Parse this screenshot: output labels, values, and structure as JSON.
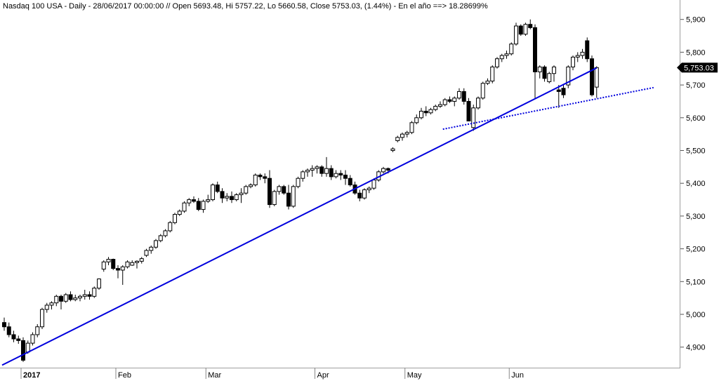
{
  "chart_data": {
    "type": "candlestick",
    "title": "Nasdaq 100 USA - Daily - 28/06/2017 00:00:00 // Open 5693.48, Hi 5757.22, Lo 5660.58, Close 5753.03, (1.44%) - En el año ==> 18.28699%",
    "ylim": [
      4840,
      5920
    ],
    "y_ticks": [
      4900,
      5000,
      5100,
      5200,
      5300,
      5400,
      5500,
      5600,
      5700,
      5800,
      5900
    ],
    "y_tick_labels": [
      "4,900",
      "5,000",
      "5,100",
      "5,200",
      "5,300",
      "5,400",
      "5,500",
      "5,600",
      "5,700",
      "5,800",
      "5,900"
    ],
    "x_labels": [
      {
        "label": "2017",
        "bold": true,
        "index": 4
      },
      {
        "label": "Feb",
        "bold": false,
        "index": 24
      },
      {
        "label": "Mar",
        "bold": false,
        "index": 43
      },
      {
        "label": "Apr",
        "bold": false,
        "index": 66
      },
      {
        "label": "May",
        "bold": false,
        "index": 85
      },
      {
        "label": "Jun",
        "bold": false,
        "index": 107
      }
    ],
    "last_value": 5753.03,
    "last_value_label": "5,753.03",
    "candles": [
      [
        4975,
        4990,
        4950,
        4962
      ],
      [
        4962,
        4975,
        4930,
        4938
      ],
      [
        4938,
        4950,
        4915,
        4925
      ],
      [
        4925,
        4935,
        4910,
        4920
      ],
      [
        4920,
        4930,
        4855,
        4860
      ],
      [
        4885,
        4920,
        4880,
        4912
      ],
      [
        4912,
        4945,
        4905,
        4938
      ],
      [
        4938,
        4970,
        4930,
        4962
      ],
      [
        4962,
        5020,
        4955,
        5015
      ],
      [
        5015,
        5035,
        5005,
        5028
      ],
      [
        5028,
        5040,
        5015,
        5035
      ],
      [
        5035,
        5060,
        5025,
        5055
      ],
      [
        5055,
        5060,
        5015,
        5040
      ],
      [
        5040,
        5065,
        5035,
        5060
      ],
      [
        5060,
        5070,
        5040,
        5045
      ],
      [
        5045,
        5060,
        5040,
        5050
      ],
      [
        5050,
        5060,
        5040,
        5055
      ],
      [
        5055,
        5075,
        5045,
        5060
      ],
      [
        5060,
        5070,
        5045,
        5055
      ],
      [
        5055,
        5085,
        5050,
        5080
      ],
      [
        5080,
        5110,
        5075,
        5108
      ],
      [
        5138,
        5165,
        5130,
        5160
      ],
      [
        5160,
        5175,
        5150,
        5168
      ],
      [
        5168,
        5170,
        5135,
        5140
      ],
      [
        5140,
        5150,
        5110,
        5135
      ],
      [
        5135,
        5150,
        5090,
        5145
      ],
      [
        5145,
        5165,
        5140,
        5160
      ],
      [
        5150,
        5165,
        5148,
        5158
      ],
      [
        5158,
        5165,
        5140,
        5162
      ],
      [
        5162,
        5175,
        5155,
        5170
      ],
      [
        5180,
        5200,
        5175,
        5195
      ],
      [
        5195,
        5210,
        5185,
        5205
      ],
      [
        5205,
        5230,
        5200,
        5225
      ],
      [
        5225,
        5245,
        5220,
        5240
      ],
      [
        5240,
        5260,
        5235,
        5255
      ],
      [
        5255,
        5285,
        5250,
        5280
      ],
      [
        5280,
        5310,
        5275,
        5305
      ],
      [
        5305,
        5320,
        5300,
        5315
      ],
      [
        5315,
        5345,
        5310,
        5340
      ],
      [
        5340,
        5355,
        5330,
        5350
      ],
      [
        5350,
        5360,
        5340,
        5345
      ],
      [
        5345,
        5355,
        5315,
        5320
      ],
      [
        5320,
        5350,
        5310,
        5345
      ],
      [
        5345,
        5365,
        5340,
        5350
      ],
      [
        5350,
        5400,
        5345,
        5395
      ],
      [
        5395,
        5405,
        5370,
        5375
      ],
      [
        5375,
        5385,
        5340,
        5355
      ],
      [
        5355,
        5370,
        5345,
        5360
      ],
      [
        5360,
        5375,
        5340,
        5350
      ],
      [
        5350,
        5370,
        5345,
        5365
      ],
      [
        5365,
        5385,
        5340,
        5370
      ],
      [
        5370,
        5395,
        5365,
        5390
      ],
      [
        5390,
        5400,
        5385,
        5395
      ],
      [
        5395,
        5430,
        5390,
        5425
      ],
      [
        5425,
        5430,
        5410,
        5420
      ],
      [
        5420,
        5430,
        5400,
        5415
      ],
      [
        5415,
        5440,
        5325,
        5335
      ],
      [
        5335,
        5380,
        5330,
        5375
      ],
      [
        5375,
        5395,
        5365,
        5390
      ],
      [
        5390,
        5395,
        5365,
        5370
      ],
      [
        5370,
        5395,
        5320,
        5330
      ],
      [
        5330,
        5395,
        5325,
        5390
      ],
      [
        5390,
        5420,
        5385,
        5415
      ],
      [
        5415,
        5440,
        5405,
        5435
      ],
      [
        5435,
        5445,
        5420,
        5440
      ],
      [
        5440,
        5455,
        5420,
        5445
      ],
      [
        5445,
        5455,
        5430,
        5450
      ],
      [
        5450,
        5455,
        5420,
        5430
      ],
      [
        5430,
        5480,
        5420,
        5445
      ],
      [
        5445,
        5455,
        5410,
        5420
      ],
      [
        5420,
        5440,
        5415,
        5430
      ],
      [
        5430,
        5440,
        5410,
        5425
      ],
      [
        5425,
        5440,
        5395,
        5415
      ],
      [
        5415,
        5425,
        5390,
        5395
      ],
      [
        5395,
        5405,
        5365,
        5370
      ],
      [
        5370,
        5380,
        5345,
        5355
      ],
      [
        5355,
        5385,
        5350,
        5380
      ],
      [
        5380,
        5390,
        5370,
        5385
      ],
      [
        5385,
        5415,
        5380,
        5410
      ],
      [
        5410,
        5440,
        5405,
        5435
      ],
      [
        5435,
        5450,
        5430,
        5445
      ],
      [
        5445,
        5448,
        5430,
        5440
      ],
      [
        5500,
        5510,
        5495,
        5505
      ],
      [
        5530,
        5545,
        5525,
        5540
      ],
      [
        5540,
        5555,
        5530,
        5550
      ],
      [
        5550,
        5560,
        5540,
        5555
      ],
      [
        5555,
        5590,
        5550,
        5585
      ],
      [
        5585,
        5610,
        5580,
        5600
      ],
      [
        5600,
        5630,
        5595,
        5620
      ],
      [
        5620,
        5635,
        5605,
        5615
      ],
      [
        5615,
        5630,
        5610,
        5625
      ],
      [
        5625,
        5640,
        5620,
        5635
      ],
      [
        5635,
        5650,
        5630,
        5640
      ],
      [
        5640,
        5660,
        5635,
        5655
      ],
      [
        5655,
        5665,
        5645,
        5650
      ],
      [
        5650,
        5665,
        5635,
        5660
      ],
      [
        5660,
        5690,
        5655,
        5680
      ],
      [
        5680,
        5690,
        5640,
        5650
      ],
      [
        5650,
        5660,
        5590,
        5590
      ],
      [
        5570,
        5640,
        5560,
        5630
      ],
      [
        5630,
        5665,
        5625,
        5660
      ],
      [
        5660,
        5710,
        5655,
        5705
      ],
      [
        5705,
        5720,
        5700,
        5712
      ],
      [
        5712,
        5760,
        5705,
        5755
      ],
      [
        5755,
        5785,
        5750,
        5780
      ],
      [
        5780,
        5795,
        5770,
        5790
      ],
      [
        5790,
        5805,
        5780,
        5795
      ],
      [
        5795,
        5830,
        5790,
        5825
      ],
      [
        5825,
        5890,
        5820,
        5880
      ],
      [
        5880,
        5885,
        5850,
        5855
      ],
      [
        5855,
        5890,
        5850,
        5885
      ],
      [
        5885,
        5900,
        5870,
        5875
      ],
      [
        5875,
        5885,
        5660,
        5740
      ],
      [
        5740,
        5760,
        5720,
        5755
      ],
      [
        5755,
        5760,
        5710,
        5720
      ],
      [
        5710,
        5740,
        5705,
        5735
      ],
      [
        5735,
        5760,
        5710,
        5755
      ],
      [
        5685,
        5700,
        5630,
        5680
      ],
      [
        5690,
        5700,
        5660,
        5670
      ],
      [
        5700,
        5760,
        5690,
        5755
      ],
      [
        5755,
        5790,
        5745,
        5785
      ],
      [
        5785,
        5800,
        5770,
        5790
      ],
      [
        5790,
        5810,
        5780,
        5800
      ],
      [
        5835,
        5845,
        5770,
        5780
      ],
      [
        5780,
        5790,
        5665,
        5670
      ],
      [
        5693.48,
        5757.22,
        5660.58,
        5753.03
      ]
    ],
    "trendlines": [
      {
        "name": "",
        "style": "solid",
        "x": [
          0,
          125
        ],
        "y": [
          4845,
          5752
        ]
      },
      {
        "name": "",
        "style": "dotted",
        "x": [
          93,
          137
        ],
        "y": [
          5565,
          5692
        ]
      }
    ]
  }
}
